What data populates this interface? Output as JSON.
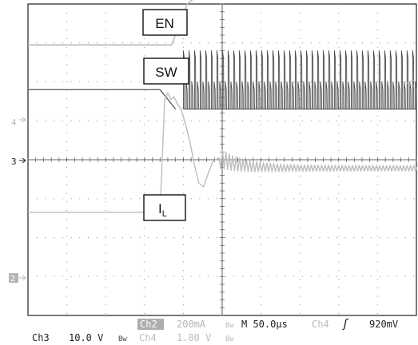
{
  "chart_data": {
    "type": "line",
    "title": "",
    "xlabel": "",
    "ylabel": "",
    "grid": true,
    "x_unit": "µs",
    "xlim": [
      -250,
      250
    ],
    "divisions": {
      "x": 10,
      "y": 8
    },
    "annotations": {
      "en": "EN",
      "sw": "SW",
      "il_main": "I",
      "il_sub": "L"
    },
    "channel_markers": {
      "ch4": "4",
      "ch3": "3",
      "ch2": "2"
    },
    "series": [
      {
        "name": "EN",
        "channel": 4,
        "color": "#bdbdbd",
        "description_points": [
          [
            -250,
            2.95
          ],
          [
            -65,
            2.95
          ],
          [
            -45,
            4.0
          ],
          [
            -30,
            4.25
          ],
          [
            250,
            4.25
          ]
        ]
      },
      {
        "name": "SW",
        "channel": 3,
        "color": "#555555",
        "description_points": [
          [
            -250,
            1.8
          ],
          [
            -80,
            1.8
          ],
          [
            -60,
            1.3
          ],
          [
            250,
            1.3
          ]
        ],
        "switching_high": 2.0,
        "switching_start": -50
      },
      {
        "name": "I",
        "channel": 2,
        "color": "#bdbdbd",
        "description_points": [
          [
            -250,
            -1.35
          ],
          [
            -80,
            -1.35
          ],
          [
            -70,
            1.7
          ],
          [
            -55,
            1.65
          ],
          [
            -30,
            0.5
          ],
          [
            -15,
            -0.75
          ],
          [
            10,
            0
          ],
          [
            50,
            -0.2
          ],
          [
            250,
            -0.2
          ]
        ]
      }
    ]
  },
  "status": {
    "ch3_label": "Ch3",
    "ch3_scale": "10.0 V",
    "ch3_bw": "Bw",
    "ch2_label": "Ch2",
    "ch2_scale": "200mA",
    "ch2_bw": "Bw",
    "ch4_label": "Ch4",
    "ch4_scale": "1.00 V",
    "ch4_bw": "Bw",
    "timebase": "M 50.0µs",
    "trigger_source": "Ch4",
    "trigger_slope": "ʃ",
    "trigger_level": "920mV"
  }
}
